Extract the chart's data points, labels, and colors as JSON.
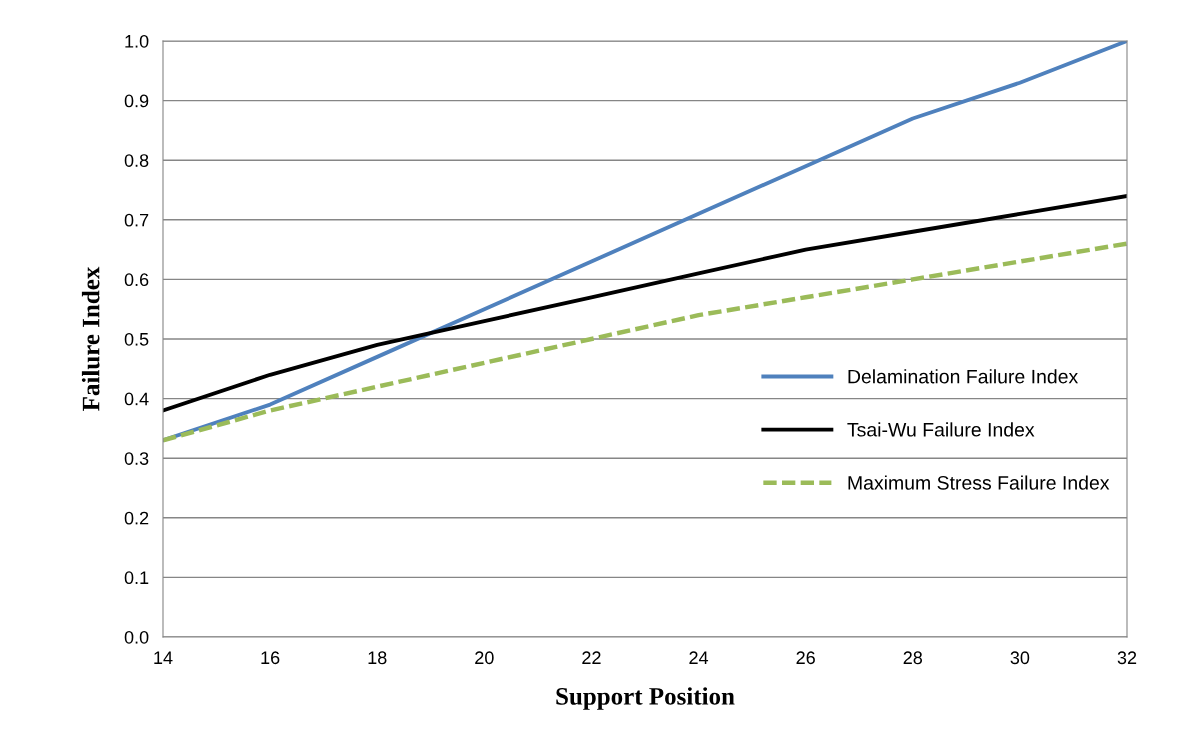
{
  "chart_data": {
    "type": "line",
    "xlabel": "Support Position",
    "ylabel": "Failure Index",
    "x": [
      14,
      16,
      18,
      20,
      22,
      24,
      26,
      28,
      30,
      32
    ],
    "series": [
      {
        "name": "Delamination Failure Index",
        "color": "#4f81bd",
        "line_style": "solid",
        "values": [
          0.33,
          0.39,
          0.47,
          0.55,
          0.63,
          0.71,
          0.79,
          0.87,
          0.93,
          1.0
        ]
      },
      {
        "name": "Tsai-Wu Failure Index",
        "color": "#000000",
        "line_style": "solid",
        "values": [
          0.38,
          0.44,
          0.49,
          0.53,
          0.57,
          0.61,
          0.65,
          0.68,
          0.71,
          0.74
        ]
      },
      {
        "name": "Maximum Stress Failure Index",
        "color": "#9bbb59",
        "line_style": "dashed",
        "values": [
          0.33,
          0.38,
          0.42,
          0.46,
          0.5,
          0.54,
          0.57,
          0.6,
          0.63,
          0.66
        ]
      }
    ],
    "xlim": [
      14,
      32
    ],
    "xticks": [
      14,
      16,
      18,
      20,
      22,
      24,
      26,
      28,
      30,
      32
    ],
    "ylim": [
      0.0,
      1.0
    ],
    "yticks": [
      {
        "value": 0.0,
        "label": "0.0"
      },
      {
        "value": 0.1,
        "label": "0.1"
      },
      {
        "value": 0.2,
        "label": "0.2"
      },
      {
        "value": 0.3,
        "label": "0.3"
      },
      {
        "value": 0.4,
        "label": "0.4"
      },
      {
        "value": 0.5,
        "label": "0.5"
      },
      {
        "value": 0.6,
        "label": "0.6"
      },
      {
        "value": 0.7,
        "label": "0.7"
      },
      {
        "value": 0.8,
        "label": "0.8"
      },
      {
        "value": 0.9,
        "label": "0.9"
      },
      {
        "value": 1.0,
        "label": "1.0"
      }
    ],
    "grid": "y",
    "legend": "center right",
    "marker": "none"
  }
}
